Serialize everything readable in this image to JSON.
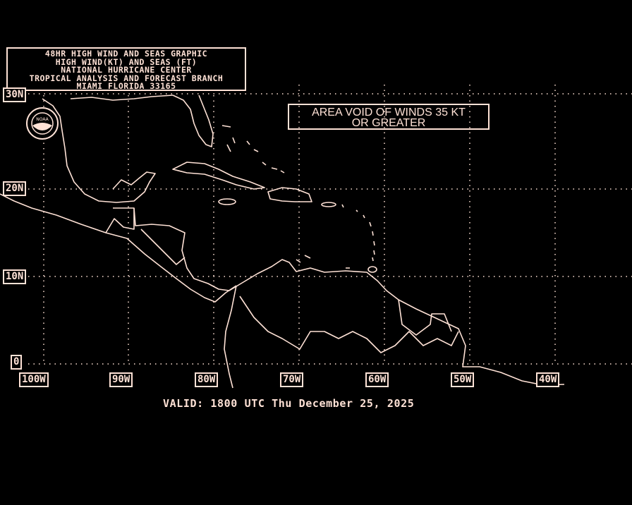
{
  "title_block": {
    "lines": [
      "48HR HIGH WIND AND SEAS GRAPHIC",
      "HIGH WIND(KT) AND SEAS (FT)",
      "NATIONAL HURRICANE CENTER",
      "TROPICAL ANALYSIS AND FORECAST BRANCH",
      "MIAMI FLORIDA  33165"
    ]
  },
  "annotation": {
    "line1": "AREA VOID OF WINDS 35 KT",
    "line2": "OR GREATER"
  },
  "latitude_labels": [
    "30N",
    "20N",
    "10N",
    "0"
  ],
  "longitude_labels": [
    "100W",
    "90W",
    "80W",
    "70W",
    "60W",
    "50W",
    "40W"
  ],
  "valid_time": "VALID: 1800 UTC Thu December 25, 2025",
  "logo": {
    "text": "NOAA"
  },
  "colors": {
    "background": "#000000",
    "foreground": "#ffe2d6"
  }
}
